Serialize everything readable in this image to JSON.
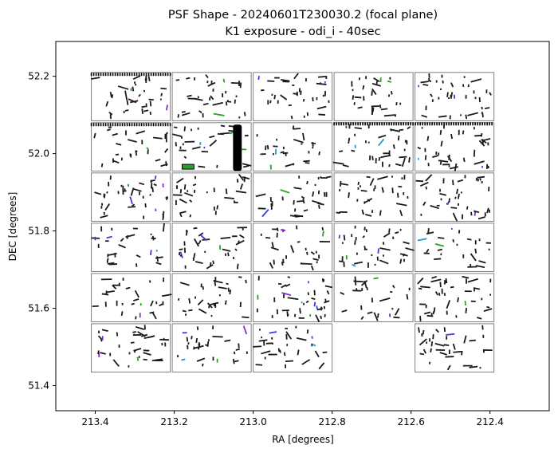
{
  "chart_data": {
    "type": "scatter",
    "title": [
      "PSF Shape - 20240601T230030.2 (focal plane)",
      "K1 exposure - odi_i - 40sec"
    ],
    "xlabel": "RA [degrees]",
    "ylabel": "DEC [degrees]",
    "xlim": [
      213.5,
      212.25
    ],
    "ylim": [
      51.335,
      52.29
    ],
    "x_ticks": [
      {
        "value": 213.4,
        "label": "213.4"
      },
      {
        "value": 213.2,
        "label": "213.2"
      },
      {
        "value": 213.0,
        "label": "213.0"
      },
      {
        "value": 212.8,
        "label": "212.8"
      },
      {
        "value": 212.6,
        "label": "212.6"
      },
      {
        "value": 212.4,
        "label": "212.4"
      }
    ],
    "y_ticks": [
      {
        "value": 51.4,
        "label": "51.4"
      },
      {
        "value": 51.6,
        "label": "51.6"
      },
      {
        "value": 51.8,
        "label": "51.8"
      },
      {
        "value": 52.0,
        "label": "52.0"
      },
      {
        "value": 52.2,
        "label": "52.2"
      }
    ],
    "grid": false,
    "ota_frames": {
      "columns": [
        {
          "ra_left": 213.41,
          "ra_right": 213.21
        },
        {
          "ra_left": 213.205,
          "ra_right": 213.005
        },
        {
          "ra_left": 213.0,
          "ra_right": 212.8
        },
        {
          "ra_left": 212.795,
          "ra_right": 212.595
        },
        {
          "ra_left": 212.59,
          "ra_right": 212.39
        }
      ],
      "rows": [
        {
          "dec_top": 52.21,
          "dec_bottom": 52.085
        },
        {
          "dec_top": 52.08,
          "dec_bottom": 51.955
        },
        {
          "dec_top": 51.95,
          "dec_bottom": 51.825
        },
        {
          "dec_top": 51.82,
          "dec_bottom": 51.695
        },
        {
          "dec_top": 51.69,
          "dec_bottom": 51.565
        },
        {
          "dec_top": 51.56,
          "dec_bottom": 51.435
        }
      ],
      "missing": [
        [
          5,
          3
        ]
      ],
      "color": "#808080"
    },
    "special_features": [
      {
        "kind": "dense-column",
        "ra_center": 213.04,
        "dec_top": 52.075,
        "dec_bottom": 51.955,
        "width_ra": 0.022,
        "color": "#000000"
      },
      {
        "kind": "dense-row",
        "dec": 52.205,
        "ra_left": 213.41,
        "ra_right": 213.21,
        "color": "#000000"
      },
      {
        "kind": "dense-row",
        "dec": 52.075,
        "ra_left": 213.41,
        "ra_right": 213.21,
        "color": "#000000"
      },
      {
        "kind": "dense-row",
        "dec": 52.077,
        "ra_left": 212.795,
        "ra_right": 212.39,
        "color": "#000000"
      },
      {
        "kind": "blob",
        "ra_center": 213.165,
        "dec": 51.966,
        "width_ra": 0.03,
        "color": "#2ca02c"
      }
    ],
    "marker_colors": [
      "#1a1a1a",
      "#7e2fd0",
      "#1f9ad6",
      "#2ca02c",
      "#3c3cdc"
    ],
    "marker_scale_note": "",
    "legend": "none"
  }
}
